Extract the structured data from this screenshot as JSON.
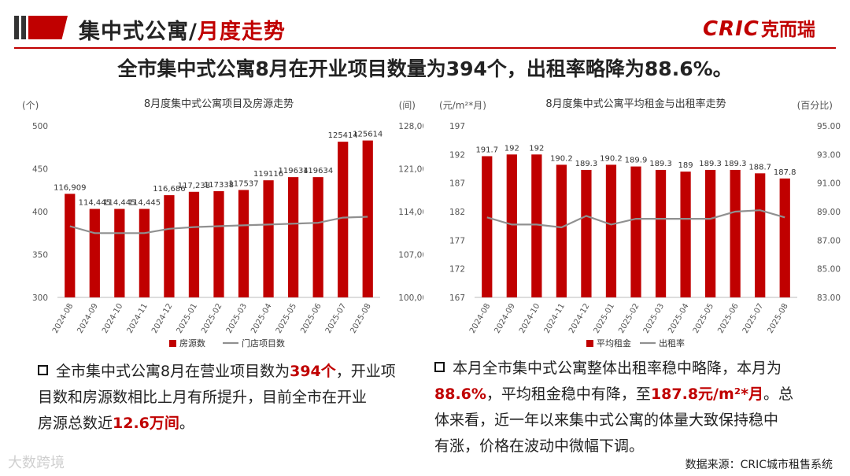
{
  "header": {
    "title_part1": "集中式公寓/",
    "title_part2": "月度走势",
    "logo_latin": "CRIC",
    "logo_cn": "克而瑞"
  },
  "headline": "全市集中式公寓8月在开业项目数量为394个，出租率略降为88.6%。",
  "colors": {
    "accent": "#c00000",
    "line": "#909090",
    "deco_dark": "#333333"
  },
  "chart_data": [
    {
      "type": "bar",
      "title": "8月度集中式公寓项目及房源走势",
      "ylabel": "(个)",
      "y2label": "(间)",
      "ylim": [
        300,
        500
      ],
      "y_ticks": [
        "500",
        "450",
        "400",
        "350",
        "300"
      ],
      "y2lim": [
        100000,
        128000
      ],
      "y2_ticks": [
        "128,000",
        "121,000",
        "114,000",
        "107,000",
        "100,000"
      ],
      "categories": [
        "2024-08",
        "2024-09",
        "2024-10",
        "2024-11",
        "2024-12",
        "2025-01",
        "2025-02",
        "2025-03",
        "2025-04",
        "2025-05",
        "2025-06",
        "2025-07",
        "2025-08"
      ],
      "series": [
        {
          "name": "房源数",
          "kind": "bar",
          "axis": "right",
          "values": [
            116909,
            114445,
            114445,
            114445,
            116686,
            117238,
            117338,
            117537,
            119116,
            119634,
            119634,
            125414,
            125614
          ],
          "labels": [
            "116,909",
            "114,445",
            "114,445",
            "114,445",
            "116,686",
            "117,238",
            "117338",
            "117537",
            "119116",
            "119634",
            "119634",
            "125414",
            "125614"
          ]
        },
        {
          "name": "门店项目数",
          "kind": "line",
          "axis": "left",
          "values": [
            383,
            375,
            375,
            375,
            380,
            382,
            383,
            384,
            385,
            386,
            387,
            393,
            394
          ]
        }
      ]
    },
    {
      "type": "bar",
      "title": "8月度集中式公寓平均租金与出租率走势",
      "ylabel": "(元/m²*月)",
      "y2label": "(百分比)",
      "ylim": [
        167,
        197
      ],
      "y_ticks": [
        "197",
        "192",
        "187",
        "182",
        "177",
        "172",
        "167"
      ],
      "y2lim": [
        83,
        95
      ],
      "y2_ticks": [
        "95.00%",
        "93.00%",
        "91.00%",
        "89.00%",
        "87.00%",
        "85.00%",
        "83.00%"
      ],
      "categories": [
        "2024-08",
        "2024-09",
        "2024-10",
        "2024-11",
        "2024-12",
        "2025-01",
        "2025-02",
        "2025-03",
        "2025-04",
        "2025-05",
        "2025-06",
        "2025-07",
        "2025-08"
      ],
      "series": [
        {
          "name": "平均租金",
          "kind": "bar",
          "axis": "left",
          "values": [
            191.7,
            192,
            192,
            190.2,
            189.3,
            190.2,
            189.9,
            189.3,
            189,
            189.3,
            189.3,
            188.7,
            187.8
          ],
          "labels": [
            "191.7",
            "192",
            "192",
            "190.2",
            "189.3",
            "190.2",
            "189.9",
            "189.3",
            "189",
            "189.3",
            "189.3",
            "188.7",
            "187.8"
          ]
        },
        {
          "name": "出租率",
          "kind": "line",
          "axis": "right",
          "values": [
            88.6,
            88.1,
            88.1,
            87.9,
            88.7,
            88.1,
            88.5,
            88.5,
            88.5,
            88.5,
            89.0,
            89.1,
            88.6
          ]
        }
      ]
    }
  ],
  "bullets": {
    "left": {
      "t1": "全市集中式公寓8月在营业项目数为",
      "h1": "394个",
      "t2": "，开业项",
      "t3": "目数和房源数相比上月有所提升，目前全市在开业",
      "t4": "房源总数近",
      "h2": "12.6万间",
      "t5": "。"
    },
    "right": {
      "t1": "本月全市集中式公寓整体出租率稳中略降，本月为",
      "h1": "88.6%",
      "t2": "，平均租金稳中有降，至",
      "h2": "187.8元/m²*月",
      "t3": "。总",
      "t4": "体来看，近一年以来集中式公寓的体量大致保持稳中",
      "t5": "有涨，价格在波动中微幅下调。"
    }
  },
  "source": "数据来源：CRIC城市租售系统",
  "watermark": "大数跨境"
}
